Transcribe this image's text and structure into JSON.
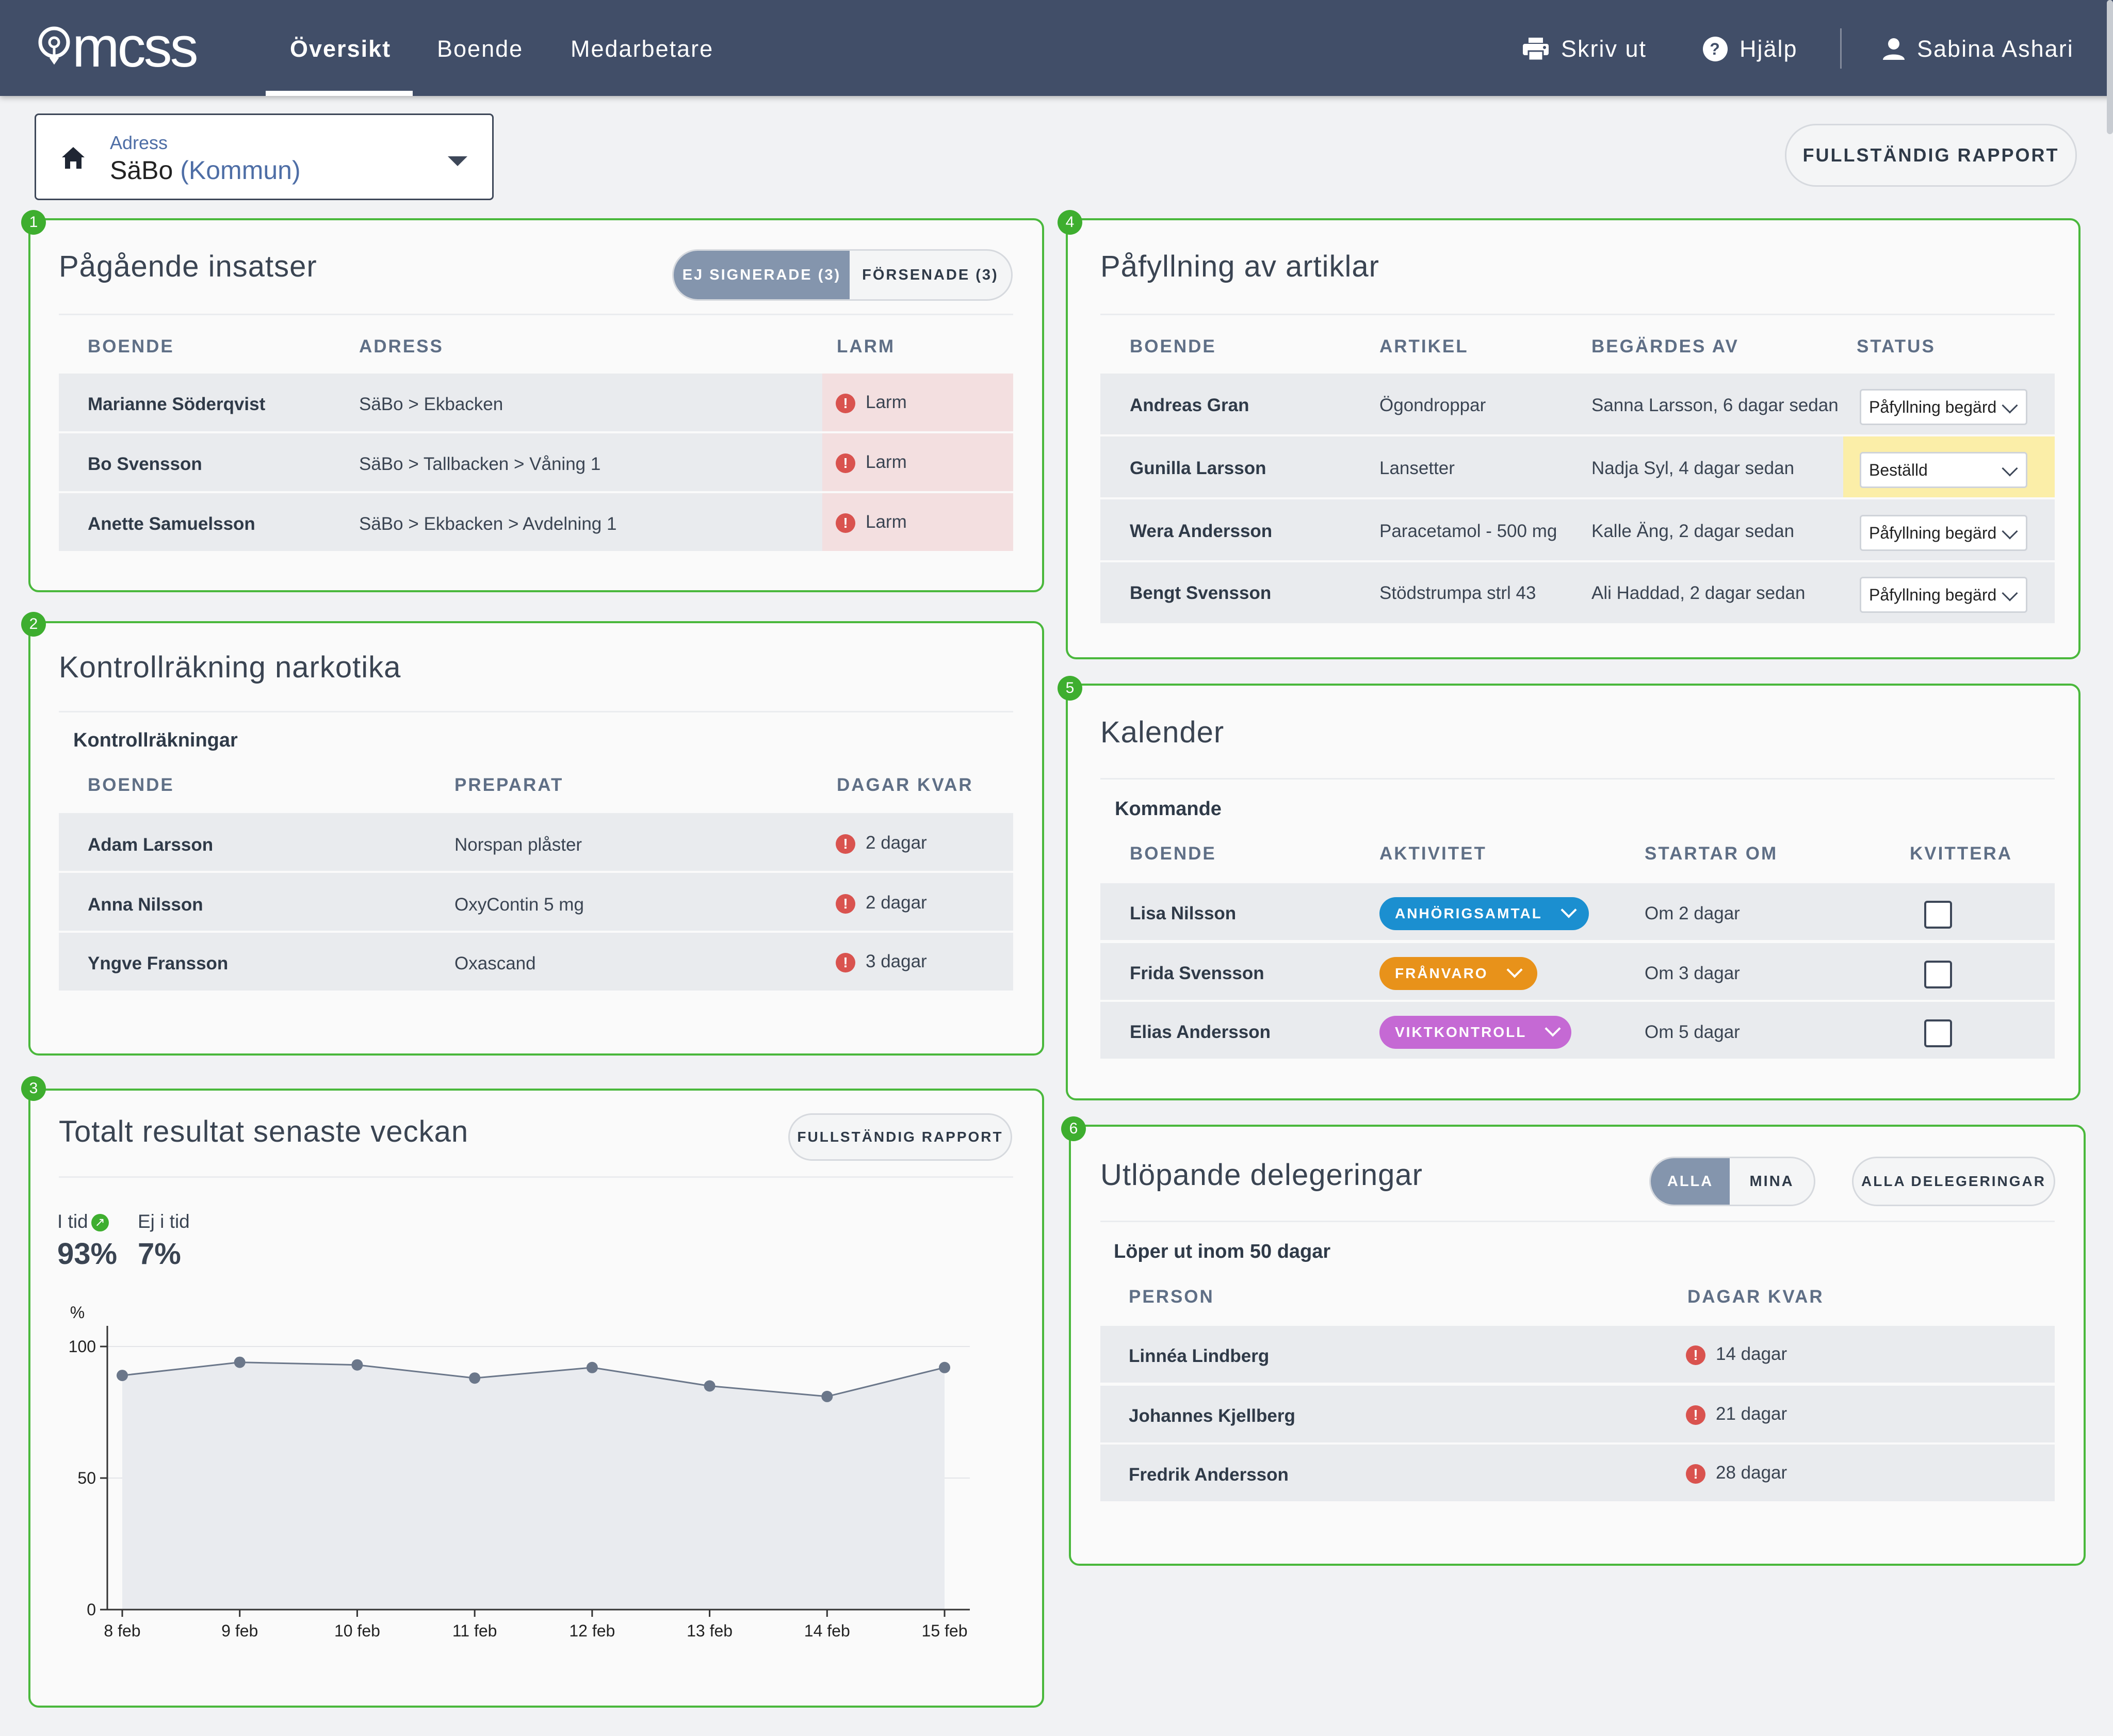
{
  "topbar": {
    "logo_text": "mcss",
    "nav": [
      "Översikt",
      "Boende",
      "Medarbetare"
    ],
    "print": "Skriv ut",
    "help": "Hjälp",
    "user": "Sabina Ashari"
  },
  "address": {
    "label": "Adress",
    "value": "SäBo",
    "scope": "(Kommun)"
  },
  "full_report": "FULLSTÄNDIG RAPPORT",
  "panel1": {
    "badge": "1",
    "title": "Pågående insatser",
    "tab_unsigned": "EJ SIGNERADE (3)",
    "tab_late": "FÖRSENADE (3)",
    "headers": [
      "BOENDE",
      "ADRESS",
      "LARM"
    ],
    "rows": [
      {
        "name": "Marianne Söderqvist",
        "address": "SäBo > Ekbacken",
        "alarm": "Larm"
      },
      {
        "name": "Bo Svensson",
        "address": "SäBo > Tallbacken > Våning 1",
        "alarm": "Larm"
      },
      {
        "name": "Anette Samuelsson",
        "address": "SäBo > Ekbacken > Avdelning 1",
        "alarm": "Larm"
      }
    ]
  },
  "panel2": {
    "badge": "2",
    "title": "Kontrollräkning narkotika",
    "subtitle": "Kontrollräkningar",
    "headers": [
      "BOENDE",
      "PREPARAT",
      "DAGAR KVAR"
    ],
    "rows": [
      {
        "name": "Adam Larsson",
        "drug": "Norspan plåster",
        "days": "2 dagar"
      },
      {
        "name": "Anna Nilsson",
        "drug": "OxyContin 5 mg",
        "days": "2 dagar"
      },
      {
        "name": "Yngve Fransson",
        "drug": "Oxascand",
        "days": "3 dagar"
      }
    ]
  },
  "panel3": {
    "badge": "3",
    "title": "Totalt resultat senaste veckan",
    "report_button": "FULLSTÄNDIG RAPPORT",
    "on_time_label": "I tid",
    "on_time_value": "93%",
    "late_label": "Ej i tid",
    "late_value": "7%"
  },
  "chart_data": {
    "type": "area",
    "ylabel": "%",
    "x": [
      "8 feb",
      "9 feb",
      "10 feb",
      "11 feb",
      "12 feb",
      "13 feb",
      "14 feb",
      "15 feb"
    ],
    "values": [
      89,
      94,
      93,
      88,
      92,
      85,
      81,
      92
    ],
    "ylim": [
      0,
      100
    ],
    "yticks": [
      0,
      50,
      100
    ],
    "grid": true,
    "colors": {
      "line": "#6b778a",
      "fill": "#e9ebef"
    }
  },
  "panel4": {
    "badge": "4",
    "title": "Påfyllning av artiklar",
    "headers": [
      "BOENDE",
      "ARTIKEL",
      "BEGÄRDES AV",
      "STATUS"
    ],
    "rows": [
      {
        "name": "Andreas Gran",
        "article": "Ögondroppar",
        "by": "Sanna Larsson, 6 dagar sedan",
        "status": "Påfyllning begärd"
      },
      {
        "name": "Gunilla Larsson",
        "article": "Lansetter",
        "by": "Nadja Syl, 4 dagar sedan",
        "status": "Beställd"
      },
      {
        "name": "Wera Andersson",
        "article": "Paracetamol - 500 mg",
        "by": "Kalle Äng, 2 dagar sedan",
        "status": "Påfyllning begärd"
      },
      {
        "name": "Bengt Svensson",
        "article": "Stödstrumpa strl 43",
        "by": "Ali Haddad, 2 dagar sedan",
        "status": "Påfyllning begärd"
      }
    ]
  },
  "panel5": {
    "badge": "5",
    "title": "Kalender",
    "subtitle": "Kommande",
    "headers": [
      "BOENDE",
      "AKTIVITET",
      "STARTAR OM",
      "KVITTERA"
    ],
    "rows": [
      {
        "name": "Lisa Nilsson",
        "activity": "ANHÖRIGSAMTAL",
        "color": "#1b8fd0",
        "starts": "Om 2 dagar"
      },
      {
        "name": "Frida Svensson",
        "activity": "FRÅNVARO",
        "color": "#e8921a",
        "starts": "Om 3 dagar"
      },
      {
        "name": "Elias Andersson",
        "activity": "VIKTKONTROLL",
        "color": "#c569d4",
        "starts": "Om 5 dagar"
      }
    ]
  },
  "panel6": {
    "badge": "6",
    "title": "Utlöpande delegeringar",
    "tab_all": "ALLA",
    "tab_mine": "MINA",
    "all_button": "ALLA DELEGERINGAR",
    "subtitle": "Löper ut inom 50 dagar",
    "headers": [
      "PERSON",
      "DAGAR KVAR"
    ],
    "rows": [
      {
        "name": "Linnéa Lindberg",
        "days": "14 dagar"
      },
      {
        "name": "Johannes Kjellberg",
        "days": "21 dagar"
      },
      {
        "name": "Fredrik Andersson",
        "days": "28 dagar"
      }
    ]
  },
  "colors": {
    "topbar": "#414e68",
    "panel_border": "#4ab83c",
    "alarm": "#d9534f",
    "ordered_highlight": "#fbeea8"
  }
}
